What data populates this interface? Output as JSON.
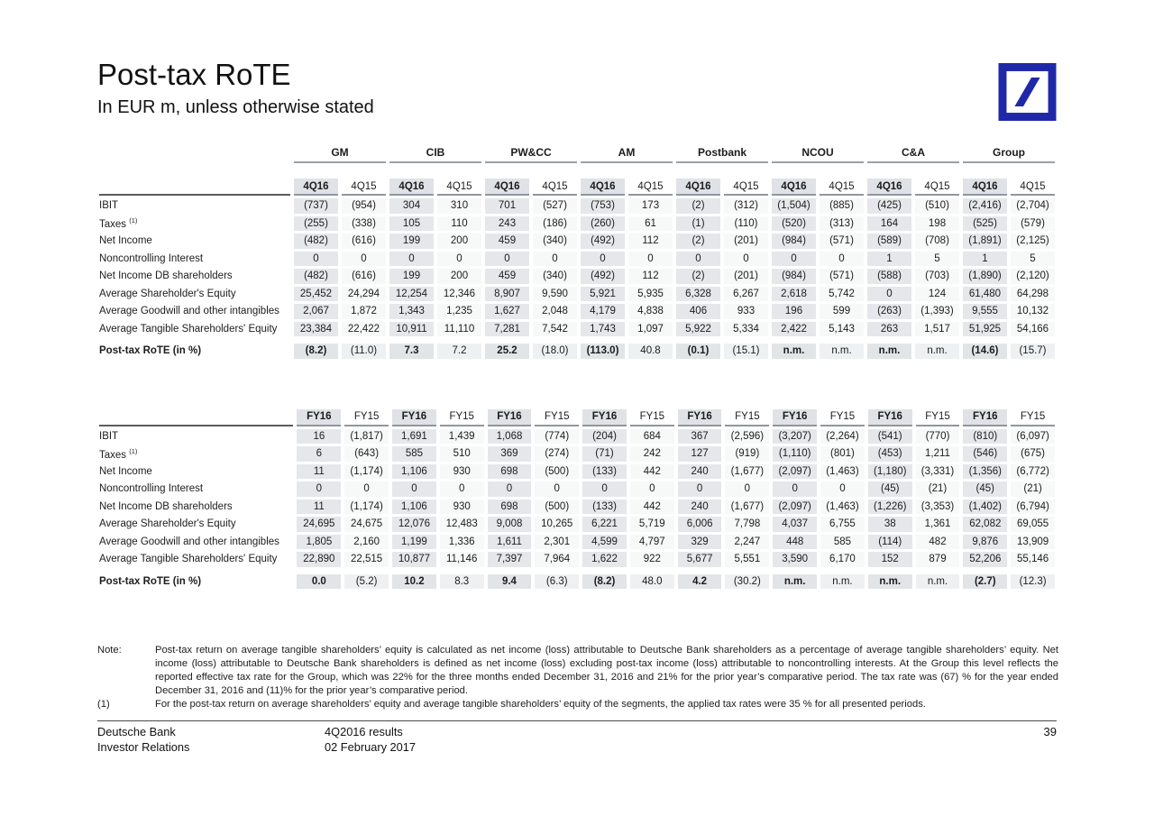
{
  "title": "Post-tax RoTE",
  "subtitle": "In EUR m, unless otherwise stated",
  "logo": {
    "brand": "Deutsche Bank",
    "color": "#1F28A8"
  },
  "segments": [
    "GM",
    "CIB",
    "PW&CC",
    "AM",
    "Postbank",
    "NCOU",
    "C&A",
    "Group"
  ],
  "tables": [
    {
      "name": "quarterly",
      "periods": [
        "4Q16",
        "4Q15"
      ],
      "show_segments": true,
      "rows": [
        {
          "label": "IBIT",
          "values": [
            "(737)",
            "(954)",
            "304",
            "310",
            "701",
            "(527)",
            "(753)",
            "173",
            "(2)",
            "(312)",
            "(1,504)",
            "(885)",
            "(425)",
            "(510)",
            "(2,416)",
            "(2,704)"
          ]
        },
        {
          "label": "Taxes",
          "sup": "(1)",
          "values": [
            "(255)",
            "(338)",
            "105",
            "110",
            "243",
            "(186)",
            "(260)",
            "61",
            "(1)",
            "(110)",
            "(520)",
            "(313)",
            "164",
            "198",
            "(525)",
            "(579)"
          ]
        },
        {
          "label": "Net Income",
          "values": [
            "(482)",
            "(616)",
            "199",
            "200",
            "459",
            "(340)",
            "(492)",
            "112",
            "(2)",
            "(201)",
            "(984)",
            "(571)",
            "(589)",
            "(708)",
            "(1,891)",
            "(2,125)"
          ]
        },
        {
          "label": "Noncontrolling Interest",
          "values": [
            "0",
            "0",
            "0",
            "0",
            "0",
            "0",
            "0",
            "0",
            "0",
            "0",
            "0",
            "0",
            "1",
            "5",
            "1",
            "5"
          ]
        },
        {
          "label": "Net Income DB shareholders",
          "values": [
            "(482)",
            "(616)",
            "199",
            "200",
            "459",
            "(340)",
            "(492)",
            "112",
            "(2)",
            "(201)",
            "(984)",
            "(571)",
            "(588)",
            "(703)",
            "(1,890)",
            "(2,120)"
          ]
        },
        {
          "label": "Average Shareholder's Equity",
          "values": [
            "25,452",
            "24,294",
            "12,254",
            "12,346",
            "8,907",
            "9,590",
            "5,921",
            "5,935",
            "6,328",
            "6,267",
            "2,618",
            "5,742",
            "0",
            "124",
            "61,480",
            "64,298"
          ]
        },
        {
          "label": "Average Goodwill and other intangibles",
          "values": [
            "2,067",
            "1,872",
            "1,343",
            "1,235",
            "1,627",
            "2,048",
            "4,179",
            "4,838",
            "406",
            "933",
            "196",
            "599",
            "(263)",
            "(1,393)",
            "9,555",
            "10,132"
          ]
        },
        {
          "label": "Average Tangible Shareholders' Equity",
          "values": [
            "23,384",
            "22,422",
            "10,911",
            "11,110",
            "7,281",
            "7,542",
            "1,743",
            "1,097",
            "5,922",
            "5,334",
            "2,422",
            "5,143",
            "263",
            "1,517",
            "51,925",
            "54,166"
          ]
        },
        {
          "label": "Post-tax RoTE (in %)",
          "total": true,
          "values": [
            "(8.2)",
            "(11.0)",
            "7.3",
            "7.2",
            "25.2",
            "(18.0)",
            "(113.0)",
            "40.8",
            "(0.1)",
            "(15.1)",
            "n.m.",
            "n.m.",
            "n.m.",
            "n.m.",
            "(14.6)",
            "(15.7)"
          ]
        }
      ]
    },
    {
      "name": "full-year",
      "periods": [
        "FY16",
        "FY15"
      ],
      "show_segments": false,
      "rows": [
        {
          "label": "IBIT",
          "values": [
            "16",
            "(1,817)",
            "1,691",
            "1,439",
            "1,068",
            "(774)",
            "(204)",
            "684",
            "367",
            "(2,596)",
            "(3,207)",
            "(2,264)",
            "(541)",
            "(770)",
            "(810)",
            "(6,097)"
          ]
        },
        {
          "label": "Taxes",
          "sup": "(1)",
          "values": [
            "6",
            "(643)",
            "585",
            "510",
            "369",
            "(274)",
            "(71)",
            "242",
            "127",
            "(919)",
            "(1,110)",
            "(801)",
            "(453)",
            "1,211",
            "(546)",
            "(675)"
          ]
        },
        {
          "label": "Net Income",
          "values": [
            "11",
            "(1,174)",
            "1,106",
            "930",
            "698",
            "(500)",
            "(133)",
            "442",
            "240",
            "(1,677)",
            "(2,097)",
            "(1,463)",
            "(1,180)",
            "(3,331)",
            "(1,356)",
            "(6,772)"
          ]
        },
        {
          "label": "Noncontrolling Interest",
          "values": [
            "0",
            "0",
            "0",
            "0",
            "0",
            "0",
            "0",
            "0",
            "0",
            "0",
            "0",
            "0",
            "(45)",
            "(21)",
            "(45)",
            "(21)"
          ]
        },
        {
          "label": "Net Income DB shareholders",
          "values": [
            "11",
            "(1,174)",
            "1,106",
            "930",
            "698",
            "(500)",
            "(133)",
            "442",
            "240",
            "(1,677)",
            "(2,097)",
            "(1,463)",
            "(1,226)",
            "(3,353)",
            "(1,402)",
            "(6,794)"
          ]
        },
        {
          "label": "Average Shareholder's Equity",
          "values": [
            "24,695",
            "24,675",
            "12,076",
            "12,483",
            "9,008",
            "10,265",
            "6,221",
            "5,719",
            "6,006",
            "7,798",
            "4,037",
            "6,755",
            "38",
            "1,361",
            "62,082",
            "69,055"
          ]
        },
        {
          "label": "Average Goodwill and other intangibles",
          "values": [
            "1,805",
            "2,160",
            "1,199",
            "1,336",
            "1,611",
            "2,301",
            "4,599",
            "4,797",
            "329",
            "2,247",
            "448",
            "585",
            "(114)",
            "482",
            "9,876",
            "13,909"
          ]
        },
        {
          "label": "Average Tangible Shareholders' Equity",
          "values": [
            "22,890",
            "22,515",
            "10,877",
            "11,146",
            "7,397",
            "7,964",
            "1,622",
            "922",
            "5,677",
            "5,551",
            "3,590",
            "6,170",
            "152",
            "879",
            "52,206",
            "55,146"
          ]
        },
        {
          "label": "Post-tax RoTE (in %)",
          "total": true,
          "values": [
            "0.0",
            "(5.2)",
            "10.2",
            "8.3",
            "9.4",
            "(6.3)",
            "(8.2)",
            "48.0",
            "4.2",
            "(30.2)",
            "n.m.",
            "n.m.",
            "n.m.",
            "n.m.",
            "(2.7)",
            "(12.3)"
          ]
        }
      ]
    }
  ],
  "notes": [
    {
      "label": "Note:",
      "text": "Post-tax return on average tangible shareholders’ equity is calculated as net income (loss) attributable to Deutsche Bank shareholders as a percentage of average tangible shareholders’ equity. Net income (loss) attributable to Deutsche Bank shareholders is defined as net income (loss) excluding post-tax income (loss) attributable to noncontrolling interests. At the Group this level reflects the reported effective tax rate for the Group, which was 22% for the three months ended December 31, 2016 and 21% for the prior year’s comparative period. The tax rate was (67) % for the year ended December 31, 2016 and (11)% for the prior year’s comparative period."
    },
    {
      "label": "(1)",
      "text": "For the post-tax return on average shareholders’ equity and average tangible shareholders’ equity of the segments, the applied tax rates were 35 % for all presented periods."
    }
  ],
  "footer": {
    "org_line1": "Deutsche Bank",
    "org_line2": "Investor Relations",
    "event_line1": "4Q2016 results",
    "event_line2": "02 February 2017",
    "page_number": "39"
  }
}
